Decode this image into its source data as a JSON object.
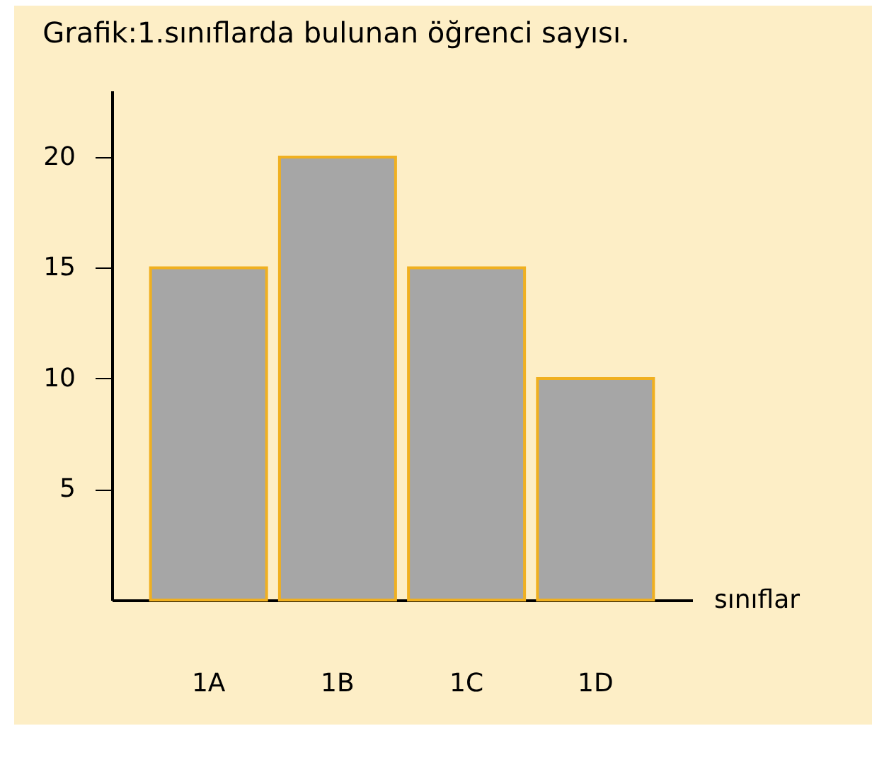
{
  "chart_data": {
    "type": "bar",
    "title": "Grafik:1.sınıflarda bulunan öğrenci sayısı.",
    "xlabel": "sınıflar",
    "categories": [
      "1A",
      "1B",
      "1C",
      "1D"
    ],
    "values": [
      15,
      20,
      15,
      10
    ],
    "colors": [
      "#a6a6a6",
      "#a6a6a6",
      "#a6a6a6",
      "#a6a6a6"
    ],
    "ylim": [
      0,
      23
    ],
    "yticks": [
      5,
      10,
      15,
      20
    ],
    "grid": false
  }
}
